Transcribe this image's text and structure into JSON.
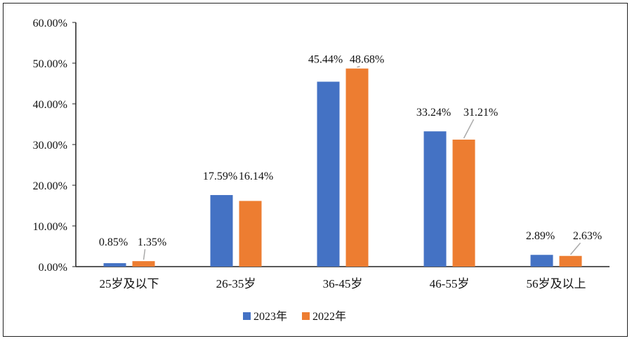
{
  "chart_data": {
    "type": "bar",
    "title": "",
    "xlabel": "",
    "ylabel": "",
    "categories": [
      "25岁及以下",
      "26-35岁",
      "36-45岁",
      "46-55岁",
      "56岁及以上"
    ],
    "series": [
      {
        "name": "2023年",
        "color": "#4472C4",
        "values": [
          0.85,
          17.59,
          45.44,
          33.24,
          2.89
        ],
        "labels": [
          "0.85%",
          "17.59%",
          "45.44%",
          "33.24%",
          "2.89%"
        ]
      },
      {
        "name": "2022年",
        "color": "#ED7D31",
        "values": [
          1.35,
          16.14,
          48.68,
          31.21,
          2.63
        ],
        "labels": [
          "1.35%",
          "16.14%",
          "48.68%",
          "31.21%",
          "2.63%"
        ]
      }
    ],
    "ylim": [
      0,
      60
    ],
    "yticks": [
      "0.00%",
      "10.00%",
      "20.00%",
      "30.00%",
      "40.00%",
      "50.00%",
      "60.00%"
    ],
    "grid": false,
    "legend": "bottom"
  }
}
